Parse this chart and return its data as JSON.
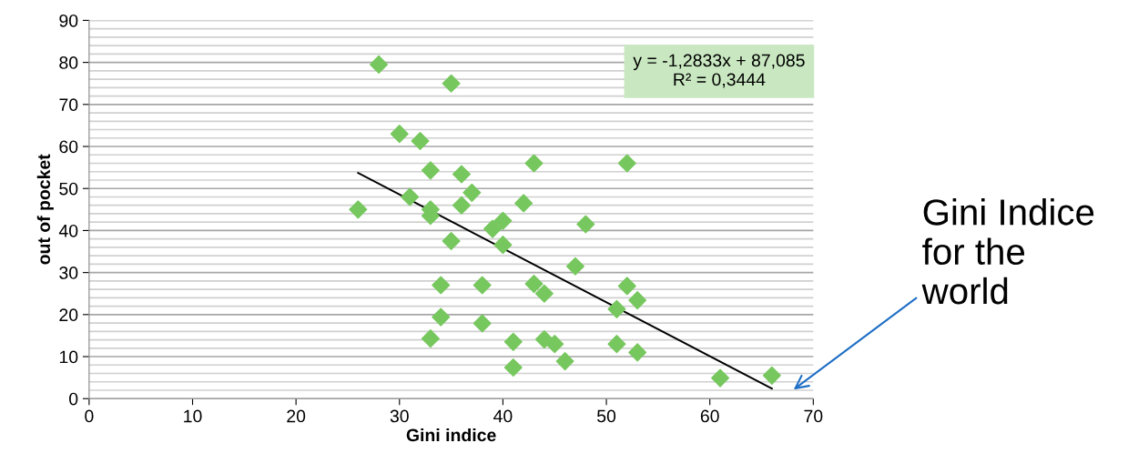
{
  "chart_data": {
    "type": "scatter",
    "xlabel": "Gini indice",
    "ylabel": "out of pocket",
    "series": [
      {
        "color": "#77c75f",
        "marker": "diamond",
        "x": [
          28,
          35,
          30,
          32,
          33,
          36,
          43,
          52,
          26,
          31,
          37,
          33,
          33,
          36,
          42,
          40,
          39,
          48,
          35,
          40,
          47,
          34,
          38,
          43,
          44,
          52,
          53,
          51,
          34,
          38,
          33,
          41,
          44,
          45,
          46,
          41,
          51,
          53,
          61,
          66
        ],
        "values": [
          79.5,
          75,
          63,
          61.3,
          54.3,
          53.4,
          56,
          56,
          45,
          48,
          49,
          45,
          43.5,
          46,
          46.5,
          42.3,
          40.4,
          41.5,
          37.5,
          36.6,
          31.5,
          27,
          27,
          27.3,
          25,
          26.8,
          23.4,
          21.3,
          19.4,
          17.9,
          14.3,
          13.5,
          14.1,
          13,
          8.9,
          7.4,
          13,
          11,
          4.9,
          5.5
        ]
      },
      {
        "type": "line",
        "color": "#000000",
        "marker": "none",
        "line_style": "solid",
        "x": [
          26,
          66
        ],
        "values": [
          53.7,
          2.4
        ]
      }
    ],
    "xlim": [
      0,
      70
    ],
    "xticks": [
      0,
      10,
      20,
      30,
      40,
      50,
      60,
      70
    ],
    "ylim": [
      0,
      90
    ],
    "yticks": [
      0,
      {
        "value": 2,
        "label": null
      },
      {
        "value": 4,
        "label": null
      },
      {
        "value": 6,
        "label": null
      },
      {
        "value": 8,
        "label": null
      },
      10,
      {
        "value": 12,
        "label": null
      },
      {
        "value": 14,
        "label": null
      },
      {
        "value": 16,
        "label": null
      },
      {
        "value": 18,
        "label": null
      },
      20,
      {
        "value": 22,
        "label": null
      },
      {
        "value": 24,
        "label": null
      },
      {
        "value": 26,
        "label": null
      },
      {
        "value": 28,
        "label": null
      },
      30,
      {
        "value": 32,
        "label": null
      },
      {
        "value": 34,
        "label": null
      },
      {
        "value": 36,
        "label": null
      },
      {
        "value": 38,
        "label": null
      },
      40,
      {
        "value": 42,
        "label": null
      },
      {
        "value": 44,
        "label": null
      },
      {
        "value": 46,
        "label": null
      },
      {
        "value": 48,
        "label": null
      },
      50,
      {
        "value": 52,
        "label": null
      },
      {
        "value": 54,
        "label": null
      },
      {
        "value": 56,
        "label": null
      },
      {
        "value": 58,
        "label": null
      },
      60,
      {
        "value": 62,
        "label": null
      },
      {
        "value": 64,
        "label": null
      },
      {
        "value": 66,
        "label": null
      },
      {
        "value": 68,
        "label": null
      },
      70,
      {
        "value": 72,
        "label": null
      },
      {
        "value": 74,
        "label": null
      },
      {
        "value": 76,
        "label": null
      },
      {
        "value": 78,
        "label": null
      },
      80,
      {
        "value": 82,
        "label": null
      },
      {
        "value": 84,
        "label": null
      },
      {
        "value": 86,
        "label": null
      },
      {
        "value": 88,
        "label": null
      },
      90
    ],
    "grid": "y",
    "legend": false,
    "annotations": [
      "y = -1,2833x + 87,085\nR² = 0,3444",
      "Gini Indice\nfor the\nworld"
    ]
  }
}
